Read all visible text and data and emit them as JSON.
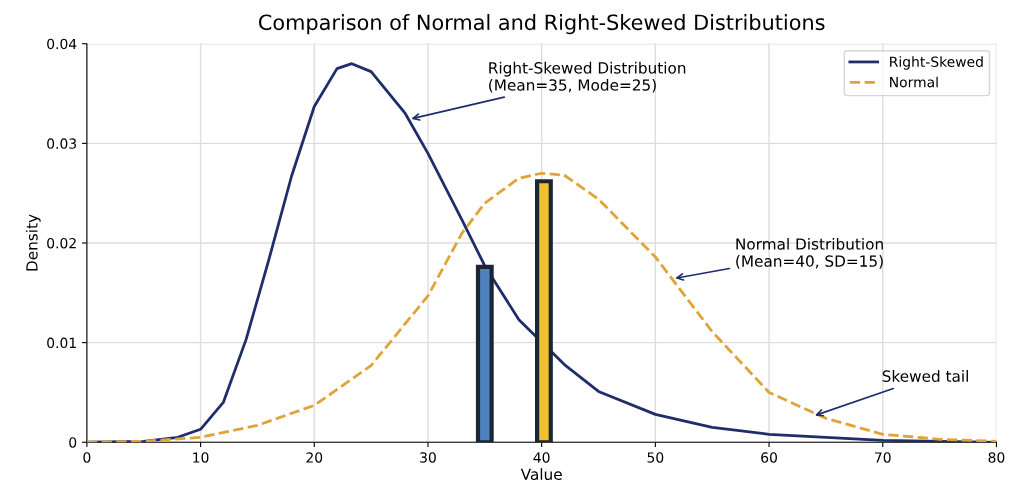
{
  "chart_data": {
    "type": "line",
    "title": "Comparison of Normal and Right-Skewed Distributions",
    "xlabel": "Value",
    "ylabel": "Density",
    "xlim": [
      0,
      80
    ],
    "ylim": [
      0,
      0.04
    ],
    "xticks": [
      0,
      10,
      20,
      30,
      40,
      50,
      60,
      70,
      80
    ],
    "yticks": [
      0,
      0.01,
      0.02,
      0.03,
      0.04
    ],
    "grid": true,
    "legend": "top right",
    "series": [
      {
        "name": "Right-Skewed",
        "line_style": "solid",
        "color": "#1f2d6b",
        "x": [
          0,
          5,
          8,
          10,
          12,
          14,
          16,
          18,
          20,
          22,
          23.3,
          25,
          28,
          30,
          33,
          35,
          38,
          42,
          45,
          50,
          55,
          60,
          70,
          80
        ],
        "values": [
          0,
          0.0001,
          0.0005,
          0.0013,
          0.004,
          0.0103,
          0.0183,
          0.0267,
          0.0337,
          0.0375,
          0.038,
          0.0372,
          0.033,
          0.029,
          0.0223,
          0.0177,
          0.0123,
          0.0078,
          0.0051,
          0.0028,
          0.0015,
          0.0008,
          0.0002,
          0
        ]
      },
      {
        "name": "Normal",
        "line_style": "dashed",
        "color": "#e0a33a",
        "x": [
          0,
          5,
          10,
          15,
          20,
          25,
          30,
          33,
          35,
          38,
          40,
          42,
          45,
          50,
          55,
          60,
          65,
          70,
          75,
          80
        ],
        "values": [
          0,
          0.0001,
          0.0005,
          0.0017,
          0.0037,
          0.0077,
          0.0147,
          0.021,
          0.024,
          0.0265,
          0.027,
          0.0268,
          0.0244,
          0.0186,
          0.0111,
          0.005,
          0.0024,
          0.0008,
          0.0003,
          0.0001
        ]
      },
      {
        "type": "bar",
        "color": "#4f81bd",
        "x": [
          35
        ],
        "values": [
          0.0176
        ]
      },
      {
        "type": "bar",
        "color": "#f0c030",
        "x": [
          40.2
        ],
        "values": [
          0.0262
        ]
      }
    ],
    "annotations": [
      {
        "text": "Right-Skewed Distribution\n(Mean=35, Mode=25)",
        "x": 28.3,
        "y": 0.0324
      },
      {
        "text": "Normal Distribution\n(Mean=40, SD=15)",
        "x": 51.5,
        "y": 0.0164
      },
      {
        "text": "Skewed tail",
        "x": 63.8,
        "y": 0.0026
      }
    ]
  }
}
